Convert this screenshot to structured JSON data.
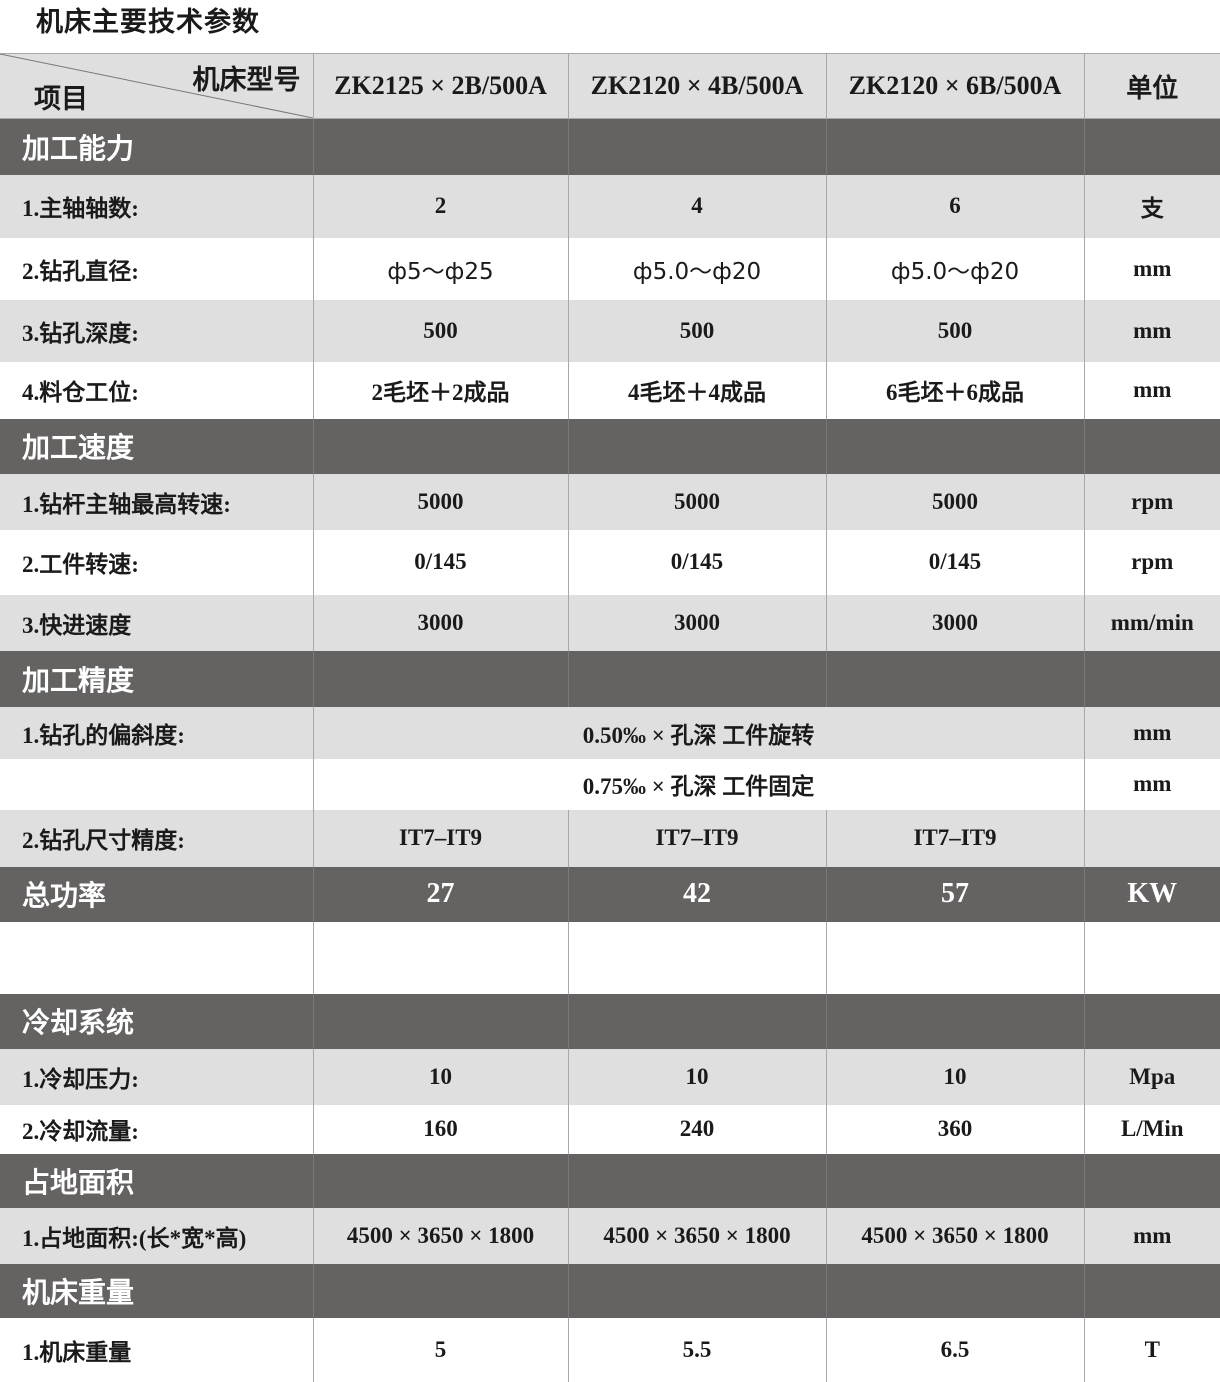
{
  "title": "机床主要技术参数",
  "header": {
    "corner_top": "机床型号",
    "corner_bottom": "项目",
    "models": [
      "ZK2125 × 2B/500A",
      "ZK2120 × 4B/500A",
      "ZK2120 × 6B/500A"
    ],
    "unit": "单位"
  },
  "rows": [
    {
      "type": "section",
      "h": 56,
      "label": "加工能力",
      "values": [
        "",
        "",
        ""
      ],
      "unit": ""
    },
    {
      "type": "gray",
      "h": 63,
      "label": "1.主轴轴数:",
      "values": [
        "2",
        "4",
        "6"
      ],
      "unit": "支"
    },
    {
      "type": "white",
      "h": 62,
      "label": "2.钻孔直径:",
      "values": [
        "ф5～ф25",
        "ф5.0～ф20",
        "ф5.0～ф20"
      ],
      "unit": "mm",
      "sans": true
    },
    {
      "type": "gray",
      "h": 62,
      "label": "3.钻孔深度:",
      "values": [
        "500",
        "500",
        "500"
      ],
      "unit": "mm"
    },
    {
      "type": "white",
      "h": 57,
      "label": "4.料仓工位:",
      "values": [
        "2毛坯＋2成品",
        "4毛坯＋4成品",
        "6毛坯＋6成品"
      ],
      "unit": "mm"
    },
    {
      "type": "section",
      "h": 55,
      "label": "加工速度",
      "values": [
        "",
        "",
        ""
      ],
      "unit": ""
    },
    {
      "type": "gray",
      "h": 56,
      "label": "1.钻杆主轴最高转速:",
      "values": [
        "5000",
        "5000",
        "5000"
      ],
      "unit": "rpm"
    },
    {
      "type": "white",
      "h": 65,
      "label": "2.工件转速:",
      "values": [
        "0/145",
        "0/145",
        "0/145"
      ],
      "unit": "rpm"
    },
    {
      "type": "gray",
      "h": 56,
      "label": "3.快进速度",
      "values": [
        "3000",
        "3000",
        "3000"
      ],
      "unit": "mm/min"
    },
    {
      "type": "section",
      "h": 56,
      "label": "加工精度",
      "values": [
        "",
        "",
        ""
      ],
      "unit": ""
    },
    {
      "type": "gray",
      "h": 52,
      "label": "1.钻孔的偏斜度:",
      "merged": "0.50‰ × 孔深  工件旋转",
      "unit": "mm"
    },
    {
      "type": "white",
      "h": 51,
      "label": "",
      "merged": "0.75‰ × 孔深  工件固定",
      "unit": "mm"
    },
    {
      "type": "gray",
      "h": 57,
      "label": "2.钻孔尺寸精度:",
      "values": [
        "IT7–IT9",
        "IT7–IT9",
        "IT7–IT9"
      ],
      "unit": ""
    },
    {
      "type": "section",
      "h": 55,
      "label": "总功率",
      "values": [
        "27",
        "42",
        "57"
      ],
      "unit": "KW"
    },
    {
      "type": "white",
      "h": 72,
      "label": "",
      "values": [
        "",
        "",
        ""
      ],
      "unit": ""
    },
    {
      "type": "section",
      "h": 55,
      "label": "冷却系统",
      "values": [
        "",
        "",
        ""
      ],
      "unit": ""
    },
    {
      "type": "gray",
      "h": 56,
      "label": "1.冷却压力:",
      "values": [
        "10",
        "10",
        "10"
      ],
      "unit": "Mpa"
    },
    {
      "type": "white",
      "h": 49,
      "label": "2.冷却流量:",
      "values": [
        "160",
        "240",
        "360"
      ],
      "unit": "L/Min"
    },
    {
      "type": "section",
      "h": 54,
      "label": "占地面积",
      "values": [
        "",
        "",
        ""
      ],
      "unit": ""
    },
    {
      "type": "gray",
      "h": 56,
      "label": "1.占地面积:(长*宽*高)",
      "values": [
        "4500 × 3650 × 1800",
        "4500 × 3650 × 1800",
        "4500 × 3650 × 1800"
      ],
      "unit": "mm"
    },
    {
      "type": "section",
      "h": 54,
      "label": "机床重量",
      "values": [
        "",
        "",
        ""
      ],
      "unit": ""
    },
    {
      "type": "white",
      "h": 64,
      "label": "1.机床重量",
      "values": [
        "5",
        "5.5",
        "6.5"
      ],
      "unit": "T"
    }
  ]
}
